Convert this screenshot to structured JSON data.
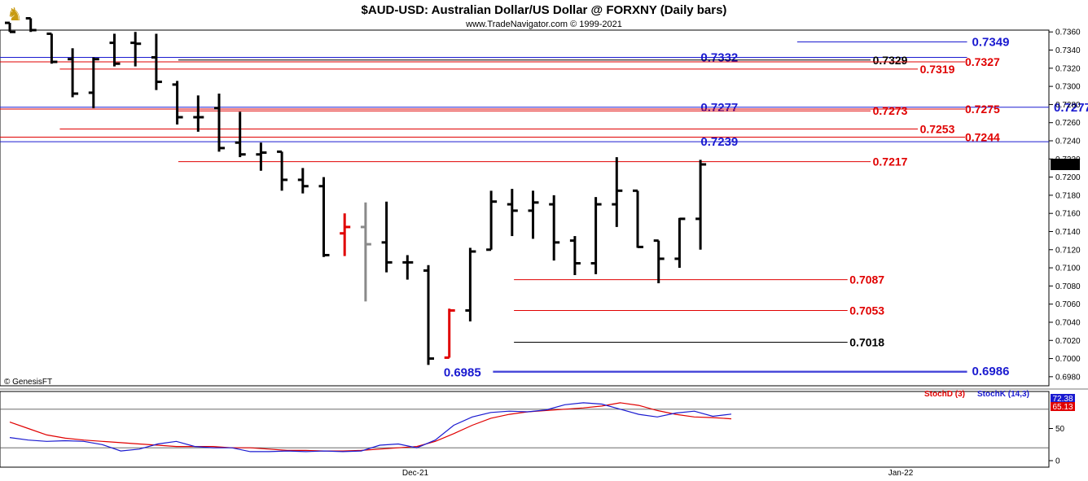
{
  "header": {
    "title": "$AUD-USD:  Australian Dollar/US Dollar @ FORXNY  (Daily bars)",
    "subtitle": "www.TradeNavigator.com © 1999-2021",
    "logo_icon": "trophy-icon"
  },
  "footer": {
    "credit": "© GenesisFT"
  },
  "chart_data": [
    {
      "type": "ohlc",
      "ylim": [
        0.697,
        0.7362
      ],
      "y_ticks": [
        "0.7360",
        "0.7340",
        "0.7320",
        "0.7300",
        "0.7280",
        "0.7260",
        "0.7240",
        "0.7220",
        "0.7200",
        "0.7180",
        "0.7160",
        "0.7140",
        "0.7120",
        "0.7100",
        "0.7080",
        "0.7060",
        "0.7040",
        "0.7020",
        "0.7000",
        "0.6980"
      ],
      "x_labels": [
        "Dec-21",
        "Jan-22"
      ],
      "last_price": "0.7214",
      "colors": {
        "bar": "#000000",
        "highlight": "#e00000",
        "gray": "#8a8a8a",
        "blue": "#1a1ad0",
        "red": "#e00000"
      },
      "bars": [
        {
          "o": 0.737,
          "h": 0.737,
          "l": 0.736,
          "c": 0.736,
          "color": "black"
        },
        {
          "o": 0.7375,
          "h": 0.7375,
          "l": 0.736,
          "c": 0.7362,
          "color": "black"
        },
        {
          "o": 0.7358,
          "h": 0.7358,
          "l": 0.7325,
          "c": 0.7327,
          "color": "black"
        },
        {
          "o": 0.733,
          "h": 0.7342,
          "l": 0.7288,
          "c": 0.7292,
          "color": "black"
        },
        {
          "o": 0.7293,
          "h": 0.7332,
          "l": 0.7276,
          "c": 0.733,
          "color": "black"
        },
        {
          "o": 0.7348,
          "h": 0.7358,
          "l": 0.7322,
          "c": 0.7325,
          "color": "black"
        },
        {
          "o": 0.7348,
          "h": 0.736,
          "l": 0.7322,
          "c": 0.7347,
          "color": "black"
        },
        {
          "o": 0.7332,
          "h": 0.7358,
          "l": 0.7296,
          "c": 0.7305,
          "color": "black"
        },
        {
          "o": 0.7302,
          "h": 0.7306,
          "l": 0.7258,
          "c": 0.7266,
          "color": "black"
        },
        {
          "o": 0.7266,
          "h": 0.729,
          "l": 0.725,
          "c": 0.7266,
          "color": "black"
        },
        {
          "o": 0.7276,
          "h": 0.7292,
          "l": 0.7228,
          "c": 0.7232,
          "color": "black"
        },
        {
          "o": 0.7238,
          "h": 0.7272,
          "l": 0.7222,
          "c": 0.7225,
          "color": "black"
        },
        {
          "o": 0.7225,
          "h": 0.7238,
          "l": 0.7207,
          "c": 0.7227,
          "color": "black"
        },
        {
          "o": 0.7228,
          "h": 0.7228,
          "l": 0.7185,
          "c": 0.7197,
          "color": "black"
        },
        {
          "o": 0.7197,
          "h": 0.721,
          "l": 0.7182,
          "c": 0.719,
          "color": "black"
        },
        {
          "o": 0.719,
          "h": 0.72,
          "l": 0.7112,
          "c": 0.7114,
          "color": "black"
        },
        {
          "o": 0.7138,
          "h": 0.716,
          "l": 0.7113,
          "c": 0.7145,
          "color": "red"
        },
        {
          "o": 0.7145,
          "h": 0.7172,
          "l": 0.7063,
          "c": 0.7126,
          "color": "gray"
        },
        {
          "o": 0.7128,
          "h": 0.7173,
          "l": 0.7095,
          "c": 0.7106,
          "color": "black"
        },
        {
          "o": 0.7106,
          "h": 0.7114,
          "l": 0.7087,
          "c": 0.7106,
          "color": "black"
        },
        {
          "o": 0.7097,
          "h": 0.7103,
          "l": 0.6993,
          "c": 0.7,
          "color": "black"
        },
        {
          "o": 0.7001,
          "h": 0.7055,
          "l": 0.7001,
          "c": 0.7053,
          "color": "red"
        },
        {
          "o": 0.7053,
          "h": 0.7122,
          "l": 0.7041,
          "c": 0.7118,
          "color": "black"
        },
        {
          "o": 0.712,
          "h": 0.7185,
          "l": 0.712,
          "c": 0.7173,
          "color": "black"
        },
        {
          "o": 0.717,
          "h": 0.7187,
          "l": 0.7135,
          "c": 0.7163,
          "color": "black"
        },
        {
          "o": 0.7163,
          "h": 0.7185,
          "l": 0.7132,
          "c": 0.7172,
          "color": "black"
        },
        {
          "o": 0.717,
          "h": 0.718,
          "l": 0.7108,
          "c": 0.7128,
          "color": "black"
        },
        {
          "o": 0.713,
          "h": 0.7135,
          "l": 0.7092,
          "c": 0.7105,
          "color": "black"
        },
        {
          "o": 0.7105,
          "h": 0.7178,
          "l": 0.7093,
          "c": 0.717,
          "color": "black"
        },
        {
          "o": 0.717,
          "h": 0.7222,
          "l": 0.7145,
          "c": 0.7185,
          "color": "black"
        },
        {
          "o": 0.7185,
          "h": 0.7185,
          "l": 0.7122,
          "c": 0.7123,
          "color": "black"
        },
        {
          "o": 0.713,
          "h": 0.713,
          "l": 0.7083,
          "c": 0.711,
          "color": "black"
        },
        {
          "o": 0.711,
          "h": 0.7155,
          "l": 0.71,
          "c": 0.7154,
          "color": "black"
        },
        {
          "o": 0.7154,
          "h": 0.7219,
          "l": 0.712,
          "c": 0.7214,
          "color": "black"
        }
      ],
      "levels": [
        {
          "value": 0.7349,
          "label": "0.7349",
          "color": "blue",
          "x0": 0.76,
          "x1": 0.922,
          "label_pos": "right"
        },
        {
          "value": 0.7332,
          "label": "0.7332",
          "color": "blue",
          "x0": 0.0,
          "x1": 0.922,
          "label_pos": "left-of-end",
          "label_x": 0.668
        },
        {
          "value": 0.7329,
          "label": "0.7329",
          "color": "black",
          "x0": 0.17,
          "x1": 0.83,
          "label_pos": "inline",
          "label_x": 0.832
        },
        {
          "value": 0.7327,
          "label": "0.7327",
          "color": "red",
          "x0": 0.0,
          "x1": 0.92,
          "label_pos": "inline",
          "label_x": 0.92
        },
        {
          "value": 0.7319,
          "label": "0.7319",
          "color": "red",
          "x0": 0.057,
          "x1": 0.875,
          "label_pos": "inline",
          "label_x": 0.877
        },
        {
          "value": 0.7277,
          "label": "0.7277",
          "color": "blue",
          "x0": 0.0,
          "x1": 1.0,
          "label_pos": "right"
        },
        {
          "value": 0.7277,
          "label": "0.7277",
          "color": "blue",
          "x0": 0.0,
          "x1": 0.0,
          "label_pos": "inline",
          "label_x": 0.668
        },
        {
          "value": 0.7275,
          "label": "0.7275",
          "color": "red",
          "x0": 0.0,
          "x1": 0.92,
          "label_pos": "inline",
          "label_x": 0.92
        },
        {
          "value": 0.7273,
          "label": "0.7273",
          "color": "red",
          "x0": 0.17,
          "x1": 0.83,
          "label_pos": "inline",
          "label_x": 0.832
        },
        {
          "value": 0.7253,
          "label": "0.7253",
          "color": "red",
          "x0": 0.057,
          "x1": 0.875,
          "label_pos": "inline",
          "label_x": 0.877
        },
        {
          "value": 0.7244,
          "label": "0.7244",
          "color": "red",
          "x0": 0.0,
          "x1": 0.92,
          "label_pos": "inline",
          "label_x": 0.92
        },
        {
          "value": 0.7239,
          "label": "0.7239",
          "color": "blue",
          "x0": 0.0,
          "x1": 1.0,
          "label_pos": "inline",
          "label_x": 0.668
        },
        {
          "value": 0.7217,
          "label": "0.7217",
          "color": "red",
          "x0": 0.17,
          "x1": 0.83,
          "label_pos": "inline",
          "label_x": 0.832
        },
        {
          "value": 0.7087,
          "label": "0.7087",
          "color": "red",
          "x0": 0.49,
          "x1": 0.808,
          "label_pos": "inline",
          "label_x": 0.81
        },
        {
          "value": 0.7053,
          "label": "0.7053",
          "color": "red",
          "x0": 0.49,
          "x1": 0.808,
          "label_pos": "inline",
          "label_x": 0.81
        },
        {
          "value": 0.7018,
          "label": "0.7018",
          "color": "black",
          "x0": 0.49,
          "x1": 0.808,
          "label_pos": "inline",
          "label_x": 0.81
        },
        {
          "value": 0.6985,
          "label": "0.6985",
          "color": "blue",
          "x0": 0.47,
          "x1": 0.922,
          "label_pos": "left",
          "label_x": 0.423
        },
        {
          "value": 0.6986,
          "label": "0.6986",
          "color": "blue",
          "x0": 0.47,
          "x1": 0.922,
          "label_pos": "right"
        }
      ]
    },
    {
      "type": "line",
      "name": "stochastic",
      "ylim": [
        0,
        100
      ],
      "y_ticks": [
        "50",
        "0"
      ],
      "reference_lines": [
        80,
        20
      ],
      "legend": [
        "StochD (3)",
        "StochK (14,3)"
      ],
      "latest_values": {
        "k": "72.38",
        "d": "65.13"
      },
      "series": [
        {
          "name": "StochD (3)",
          "color": "red",
          "values": [
            60,
            50,
            40,
            35,
            32,
            30,
            28,
            26,
            24,
            22,
            22,
            22,
            20,
            20,
            18,
            16,
            16,
            15,
            15,
            16,
            18,
            20,
            22,
            30,
            42,
            55,
            66,
            72,
            76,
            78,
            80,
            82,
            85,
            90,
            86,
            78,
            72,
            68,
            67,
            65
          ]
        },
        {
          "name": "StochK (14,3)",
          "color": "blue",
          "values": [
            36,
            32,
            30,
            31,
            30,
            25,
            15,
            18,
            26,
            30,
            22,
            20,
            20,
            14,
            14,
            15,
            14,
            15,
            14,
            15,
            24,
            26,
            20,
            32,
            55,
            68,
            75,
            77,
            76,
            79,
            87,
            90,
            88,
            80,
            72,
            68,
            74,
            77,
            69,
            72.38
          ]
        }
      ]
    }
  ]
}
